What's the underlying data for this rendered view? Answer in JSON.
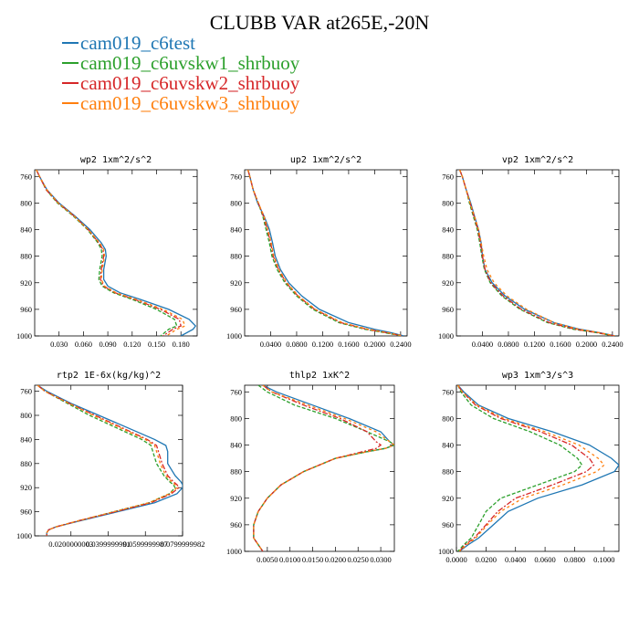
{
  "title": "CLUBB VAR at265E,-20N",
  "legend": [
    {
      "label": "cam019_c6test",
      "color": "#1f77b4"
    },
    {
      "label": "cam019_c6uvskw1_shrbuoy",
      "color": "#2ca02c"
    },
    {
      "label": "cam019_c6uvskw2_shrbuoy",
      "color": "#d62728"
    },
    {
      "label": "cam019_c6uvskw3_shrbuoy",
      "color": "#ff7f0e"
    }
  ],
  "chart_data": [
    {
      "type": "line",
      "title": "wp2  1xm^2/s^2",
      "ylim": [
        1000,
        750
      ],
      "yticks": [
        760,
        800,
        840,
        880,
        920,
        960,
        1000
      ],
      "xlim": [
        0,
        0.2
      ],
      "xticks": [
        0.03,
        0.06,
        0.09,
        0.12,
        0.15,
        0.18
      ],
      "xtick_labels": [
        "0.030",
        "0.060",
        "0.090",
        "0.120",
        "0.150",
        "0.180"
      ],
      "y": [
        750,
        760,
        780,
        800,
        820,
        840,
        860,
        870,
        880,
        900,
        915,
        925,
        935,
        945,
        960,
        975,
        985,
        990,
        1000
      ],
      "series": [
        {
          "name": "cam019_c6test",
          "values": [
            0.002,
            0.006,
            0.015,
            0.03,
            0.05,
            0.068,
            0.082,
            0.087,
            0.088,
            0.085,
            0.085,
            0.09,
            0.105,
            0.13,
            0.165,
            0.19,
            0.198,
            0.195,
            0.18
          ]
        },
        {
          "name": "cam019_c6uvskw1_shrbuoy",
          "values": [
            0.002,
            0.006,
            0.014,
            0.028,
            0.048,
            0.065,
            0.078,
            0.082,
            0.083,
            0.08,
            0.079,
            0.083,
            0.097,
            0.12,
            0.15,
            0.172,
            0.175,
            0.165,
            0.155
          ]
        },
        {
          "name": "cam019_c6uvskw2_shrbuoy",
          "values": [
            0.002,
            0.006,
            0.014,
            0.029,
            0.049,
            0.066,
            0.079,
            0.084,
            0.085,
            0.082,
            0.081,
            0.085,
            0.099,
            0.123,
            0.155,
            0.178,
            0.18,
            0.17,
            0.158
          ]
        },
        {
          "name": "cam019_c6uvskw3_shrbuoy",
          "values": [
            0.002,
            0.006,
            0.015,
            0.029,
            0.049,
            0.066,
            0.08,
            0.085,
            0.086,
            0.083,
            0.082,
            0.086,
            0.1,
            0.125,
            0.158,
            0.182,
            0.185,
            0.175,
            0.162
          ]
        }
      ]
    },
    {
      "type": "line",
      "title": "up2  1xm^2/s^2",
      "ylim": [
        1000,
        750
      ],
      "yticks": [
        760,
        800,
        840,
        880,
        920,
        960,
        1000
      ],
      "xlim": [
        0,
        0.25
      ],
      "xticks": [
        0.04,
        0.08,
        0.12,
        0.16,
        0.2,
        0.24
      ],
      "xtick_labels": [
        "0.0400",
        "0.0800",
        "0.1200",
        "0.1600",
        "0.2000",
        "0.2400"
      ],
      "y": [
        750,
        760,
        780,
        800,
        820,
        840,
        860,
        880,
        900,
        920,
        940,
        960,
        980,
        990,
        995,
        1000
      ],
      "series": [
        {
          "name": "cam019_c6test",
          "values": [
            0.005,
            0.008,
            0.013,
            0.02,
            0.03,
            0.038,
            0.043,
            0.047,
            0.055,
            0.068,
            0.088,
            0.115,
            0.16,
            0.2,
            0.225,
            0.245
          ]
        },
        {
          "name": "cam019_c6uvskw1_shrbuoy",
          "values": [
            0.005,
            0.008,
            0.013,
            0.021,
            0.028,
            0.033,
            0.038,
            0.042,
            0.05,
            0.062,
            0.08,
            0.105,
            0.145,
            0.185,
            0.215,
            0.242
          ]
        },
        {
          "name": "cam019_c6uvskw2_shrbuoy",
          "values": [
            0.005,
            0.008,
            0.013,
            0.021,
            0.029,
            0.035,
            0.04,
            0.044,
            0.052,
            0.064,
            0.082,
            0.108,
            0.148,
            0.188,
            0.218,
            0.243
          ]
        },
        {
          "name": "cam019_c6uvskw3_shrbuoy",
          "values": [
            0.005,
            0.008,
            0.013,
            0.021,
            0.03,
            0.036,
            0.041,
            0.045,
            0.053,
            0.065,
            0.083,
            0.109,
            0.15,
            0.19,
            0.22,
            0.244
          ]
        }
      ]
    },
    {
      "type": "line",
      "title": "vp2  1xm^2/s^2",
      "ylim": [
        1000,
        750
      ],
      "yticks": [
        760,
        800,
        840,
        880,
        920,
        960,
        1000
      ],
      "xlim": [
        0,
        0.25
      ],
      "xticks": [
        0.04,
        0.08,
        0.12,
        0.16,
        0.2,
        0.24
      ],
      "xtick_labels": [
        "0.0400",
        "0.0800",
        "0.1200",
        "0.1600",
        "0.2000",
        "0.2400"
      ],
      "y": [
        750,
        760,
        780,
        800,
        820,
        840,
        860,
        880,
        900,
        920,
        940,
        960,
        980,
        990,
        995,
        1000
      ],
      "series": [
        {
          "name": "cam019_c6test",
          "values": [
            0.005,
            0.009,
            0.015,
            0.022,
            0.028,
            0.034,
            0.038,
            0.04,
            0.044,
            0.055,
            0.075,
            0.105,
            0.15,
            0.19,
            0.22,
            0.245
          ]
        },
        {
          "name": "cam019_c6uvskw1_shrbuoy",
          "values": [
            0.005,
            0.009,
            0.015,
            0.02,
            0.026,
            0.032,
            0.036,
            0.039,
            0.043,
            0.052,
            0.07,
            0.098,
            0.14,
            0.18,
            0.215,
            0.242
          ]
        },
        {
          "name": "cam019_c6uvskw2_shrbuoy",
          "values": [
            0.005,
            0.009,
            0.015,
            0.021,
            0.027,
            0.033,
            0.037,
            0.04,
            0.044,
            0.053,
            0.072,
            0.1,
            0.143,
            0.183,
            0.217,
            0.243
          ]
        },
        {
          "name": "cam019_c6uvskw3_shrbuoy",
          "values": [
            0.005,
            0.009,
            0.015,
            0.021,
            0.028,
            0.034,
            0.038,
            0.042,
            0.047,
            0.058,
            0.078,
            0.108,
            0.15,
            0.188,
            0.22,
            0.244
          ]
        }
      ]
    },
    {
      "type": "line",
      "title": "rtp2  1E-6x(kg/kg)^2",
      "ylim": [
        1000,
        750
      ],
      "yticks": [
        760,
        800,
        840,
        880,
        920,
        960,
        1000
      ],
      "xlim": [
        0.0005,
        0.08
      ],
      "xticks": [
        0.02,
        0.04,
        0.06,
        0.08
      ],
      "xtick_labels": [
        "0.0200000003",
        "0.0399999991",
        "0.0599999987",
        "0.0799999982"
      ],
      "y": [
        750,
        760,
        780,
        800,
        820,
        840,
        850,
        860,
        880,
        900,
        910,
        915,
        920,
        930,
        945,
        960,
        975,
        985,
        990,
        995,
        1000
      ],
      "series": [
        {
          "name": "cam019_c6test",
          "values": [
            0.002,
            0.007,
            0.02,
            0.035,
            0.05,
            0.065,
            0.071,
            0.072,
            0.072,
            0.076,
            0.079,
            0.08,
            0.08,
            0.077,
            0.065,
            0.045,
            0.025,
            0.012,
            0.008,
            0.007,
            0.007
          ]
        },
        {
          "name": "cam019_c6uvskw1_shrbuoy",
          "values": [
            0.002,
            0.006,
            0.018,
            0.03,
            0.044,
            0.058,
            0.063,
            0.064,
            0.066,
            0.07,
            0.073,
            0.075,
            0.076,
            0.073,
            0.062,
            0.043,
            0.024,
            0.012,
            0.008,
            0.007,
            0.007
          ]
        },
        {
          "name": "cam019_c6uvskw2_shrbuoy",
          "values": [
            0.002,
            0.006,
            0.019,
            0.033,
            0.047,
            0.061,
            0.066,
            0.067,
            0.069,
            0.072,
            0.075,
            0.077,
            0.078,
            0.074,
            0.063,
            0.044,
            0.024,
            0.012,
            0.008,
            0.007,
            0.007
          ]
        },
        {
          "name": "cam019_c6uvskw3_shrbuoy",
          "values": [
            0.002,
            0.006,
            0.019,
            0.032,
            0.046,
            0.06,
            0.065,
            0.066,
            0.068,
            0.071,
            0.074,
            0.076,
            0.077,
            0.073,
            0.062,
            0.043,
            0.024,
            0.012,
            0.008,
            0.007,
            0.007
          ]
        }
      ]
    },
    {
      "type": "line",
      "title": "thlp2  1xK^2",
      "ylim": [
        1000,
        750
      ],
      "yticks": [
        760,
        800,
        840,
        880,
        920,
        960,
        1000
      ],
      "xlim": [
        0,
        0.033
      ],
      "xticks": [
        0.005,
        0.01,
        0.015,
        0.02,
        0.025,
        0.03
      ],
      "xtick_labels": [
        "0.0050",
        "0.0100",
        "0.0150",
        "0.0200",
        "0.0250",
        "0.0300"
      ],
      "y": [
        750,
        760,
        780,
        800,
        820,
        835,
        840,
        845,
        850,
        860,
        880,
        900,
        920,
        940,
        960,
        970,
        980,
        990,
        1000
      ],
      "series": [
        {
          "name": "cam019_c6test",
          "values": [
            0.004,
            0.007,
            0.015,
            0.023,
            0.03,
            0.032,
            0.033,
            0.031,
            0.027,
            0.02,
            0.013,
            0.008,
            0.005,
            0.003,
            0.002,
            0.002,
            0.002,
            0.003,
            0.004
          ]
        },
        {
          "name": "cam019_c6uvskw1_shrbuoy",
          "values": [
            0.003,
            0.005,
            0.011,
            0.02,
            0.027,
            0.032,
            0.033,
            0.031,
            0.027,
            0.02,
            0.013,
            0.008,
            0.005,
            0.003,
            0.002,
            0.002,
            0.002,
            0.003,
            0.004
          ]
        },
        {
          "name": "cam019_c6uvskw2_shrbuoy",
          "values": [
            0.004,
            0.006,
            0.013,
            0.021,
            0.027,
            0.029,
            0.03,
            0.029,
            0.026,
            0.02,
            0.013,
            0.008,
            0.005,
            0.003,
            0.002,
            0.002,
            0.002,
            0.003,
            0.004
          ]
        },
        {
          "name": "cam019_c6uvskw3_shrbuoy",
          "values": [
            0.004,
            0.006,
            0.014,
            0.022,
            0.029,
            0.032,
            0.033,
            0.031,
            0.027,
            0.02,
            0.013,
            0.008,
            0.005,
            0.003,
            0.002,
            0.002,
            0.002,
            0.003,
            0.004
          ]
        }
      ]
    },
    {
      "type": "line",
      "title": "wp3  1xm^3/s^3",
      "ylim": [
        1000,
        750
      ],
      "yticks": [
        760,
        800,
        840,
        880,
        920,
        960,
        1000
      ],
      "xlim": [
        0,
        0.11
      ],
      "xticks": [
        0,
        0.02,
        0.04,
        0.06,
        0.08,
        0.1
      ],
      "xtick_labels": [
        "0.0000",
        "0.0200",
        "0.0400",
        "0.0600",
        "0.0800",
        "0.1000"
      ],
      "y": [
        750,
        760,
        780,
        800,
        820,
        840,
        860,
        870,
        880,
        900,
        920,
        940,
        960,
        980,
        990,
        1000
      ],
      "series": [
        {
          "name": "cam019_c6test",
          "values": [
            0.001,
            0.005,
            0.015,
            0.035,
            0.065,
            0.09,
            0.105,
            0.11,
            0.107,
            0.085,
            0.055,
            0.035,
            0.025,
            0.015,
            0.008,
            0.002
          ]
        },
        {
          "name": "cam019_c6uvskw1_shrbuoy",
          "values": [
            0.001,
            0.003,
            0.01,
            0.025,
            0.05,
            0.07,
            0.082,
            0.085,
            0.08,
            0.055,
            0.03,
            0.02,
            0.015,
            0.01,
            0.005,
            0.001
          ]
        },
        {
          "name": "cam019_c6uvskw2_shrbuoy",
          "values": [
            0.001,
            0.004,
            0.013,
            0.03,
            0.057,
            0.078,
            0.09,
            0.093,
            0.088,
            0.065,
            0.04,
            0.028,
            0.02,
            0.012,
            0.006,
            0.002
          ]
        },
        {
          "name": "cam019_c6uvskw3_shrbuoy",
          "values": [
            0.001,
            0.004,
            0.014,
            0.032,
            0.06,
            0.083,
            0.096,
            0.1,
            0.095,
            0.072,
            0.045,
            0.03,
            0.021,
            0.013,
            0.007,
            0.002
          ]
        }
      ]
    }
  ]
}
